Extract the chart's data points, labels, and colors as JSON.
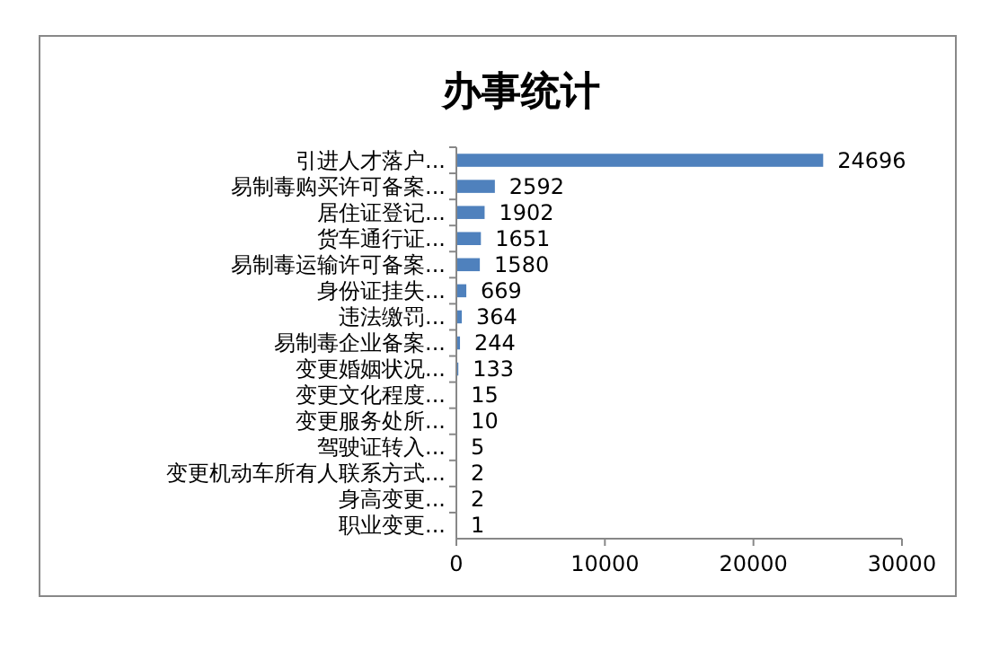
{
  "chart_data": {
    "type": "bar",
    "orientation": "horizontal",
    "title": "办事统计",
    "categories": [
      "引进人才落户...",
      "易制毒购买许可备案...",
      "居住证登记...",
      "货车通行证...",
      "易制毒运输许可备案...",
      "身份证挂失...",
      "违法缴罚...",
      "易制毒企业备案...",
      "变更婚姻状况...",
      "变更文化程度...",
      "变更服务处所...",
      "驾驶证转入...",
      "变更机动车所有人联系方式...",
      "身高变更...",
      "职业变更..."
    ],
    "values": [
      24696,
      2592,
      1902,
      1651,
      1580,
      669,
      364,
      244,
      133,
      15,
      10,
      5,
      2,
      2,
      1
    ],
    "color": "#4f81bd",
    "xlim": [
      0,
      30000
    ],
    "xticks": [
      0,
      10000,
      20000,
      30000
    ],
    "data_labels": true
  }
}
